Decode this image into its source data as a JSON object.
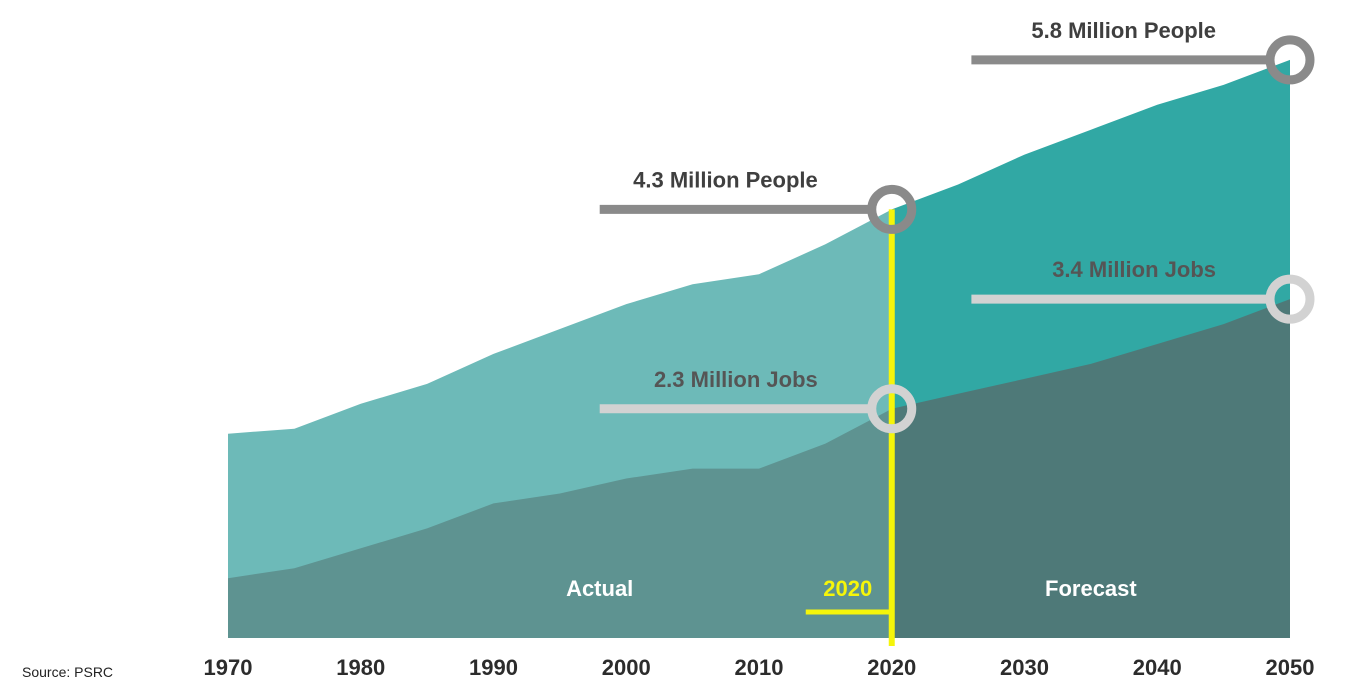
{
  "chart_data": {
    "type": "area",
    "x_ticks": [
      "1970",
      "1980",
      "1990",
      "2000",
      "2010",
      "2020",
      "2030",
      "2040",
      "2050"
    ],
    "xlim": [
      1970,
      2050
    ],
    "ylim": [
      0,
      6.0
    ],
    "y_unit_note": "millions",
    "divider_year": 2020,
    "divider_label": "2020",
    "zone_labels": {
      "actual": "Actual",
      "forecast": "Forecast"
    },
    "source": "Source: PSRC",
    "series": [
      {
        "key": "people",
        "x": [
          1970,
          1975,
          1980,
          1985,
          1990,
          1995,
          2000,
          2005,
          2010,
          2015,
          2020,
          2025,
          2030,
          2035,
          2040,
          2045,
          2050
        ],
        "y": [
          2.05,
          2.1,
          2.35,
          2.55,
          2.85,
          3.1,
          3.35,
          3.55,
          3.65,
          3.95,
          4.3,
          4.55,
          4.85,
          5.1,
          5.35,
          5.55,
          5.8
        ]
      },
      {
        "key": "jobs",
        "x": [
          1970,
          1975,
          1980,
          1985,
          1990,
          1995,
          2000,
          2005,
          2010,
          2015,
          2020,
          2025,
          2030,
          2035,
          2040,
          2045,
          2050
        ],
        "y": [
          0.6,
          0.7,
          0.9,
          1.1,
          1.35,
          1.45,
          1.6,
          1.7,
          1.7,
          1.95,
          2.3,
          2.45,
          2.6,
          2.75,
          2.95,
          3.15,
          3.4
        ]
      }
    ],
    "callouts": [
      {
        "series": "people",
        "year": 2050,
        "text": "5.8 Million People",
        "line_start_year": 2026
      },
      {
        "series": "people",
        "year": 2020,
        "text": "4.3 Million People",
        "line_start_year": 1998
      },
      {
        "series": "jobs",
        "year": 2050,
        "text": "3.4 Million Jobs",
        "line_start_year": 2026
      },
      {
        "series": "jobs",
        "year": 2020,
        "text": "2.3 Million Jobs",
        "line_start_year": 1998
      }
    ],
    "colors": {
      "people_actual": "#6dbab8",
      "people_forecast": "#31a8a4",
      "jobs_actual": "#5e9391",
      "jobs_forecast": "#4e7978",
      "divider": "#f5f50a",
      "people_callout": "#8a8a8a",
      "jobs_callout": "#d2d2d2",
      "people_text": "#3f3f3f",
      "jobs_text": "#555555"
    }
  }
}
